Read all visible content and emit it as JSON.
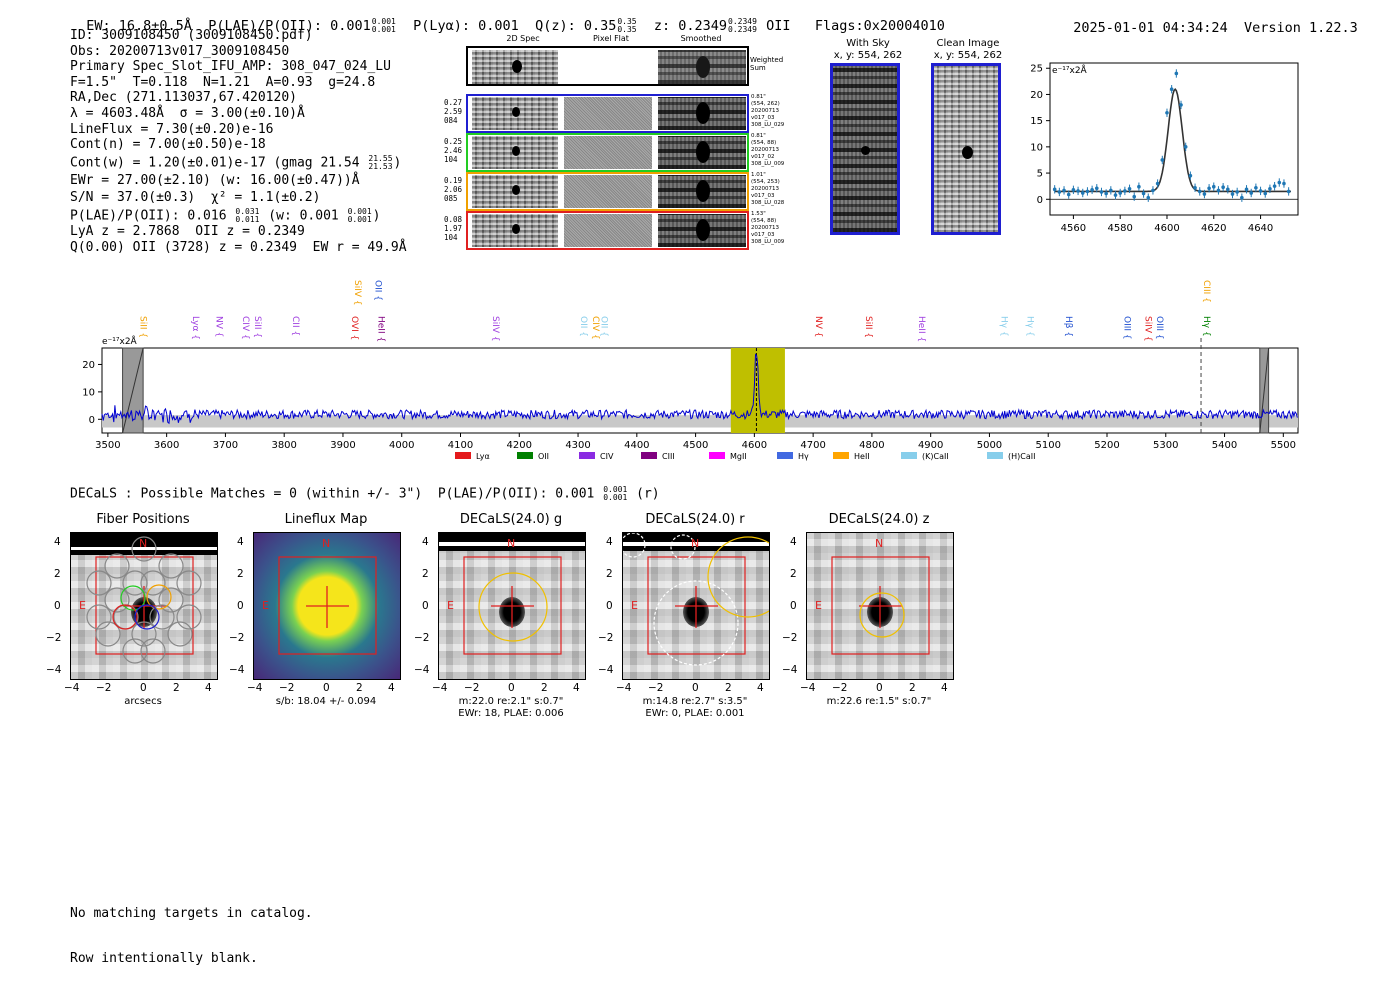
{
  "header": {
    "ew": "EW: 16.8±0.5Å",
    "plae_label": "P(LAE)/P(OII): 0.001",
    "plae_hi": "0.001",
    "plae_lo": "0.001",
    "plya": "P(Lyα): 0.001",
    "qz_label": "Q(z): 0.35",
    "qz_hi": "0.35",
    "qz_lo": "0.35",
    "z_label": "z: 0.2349",
    "z_hi": "0.2349",
    "z_lo": "0.2349",
    "z_line": "OII",
    "flags": "Flags:0x20004010",
    "timestamp": "2025-01-01 04:34:24",
    "version": "Version 1.22.3"
  },
  "info": {
    "id": "ID: 3009108450 (3009108450.pdf)",
    "obs": "Obs: 20200713v017_3009108450",
    "primary": "Primary Spec_Slot_IFU_AMP: 308_047_024_LU",
    "fit": "F=1.5\"  T=0.118  N=1.21  A=0.93  g=24.8",
    "radec": "RA,Dec (271.113037,67.420120)",
    "lambda": "λ = 4603.48Å  σ = 3.00(±0.10)Å",
    "lineflux": "LineFlux = 7.30(±0.20)e-16",
    "contn": "Cont(n) = 7.00(±0.50)e-18",
    "contw_a": "Cont(w) = 1.20(±0.01)e-17 (gmag 21.54",
    "contw_hi": "21.55",
    "contw_lo": "21.53",
    "contw_b": ")",
    "ewr": "EWr = 27.00(±2.10) (w: 16.00(±0.47))Å",
    "sn": "S/N = 37.0(±0.3)  χ² = 1.1(±0.2)",
    "plae_a": "P(LAE)/P(OII): 0.016",
    "plae_hi": "0.031",
    "plae_lo": "0.011",
    "plae_b": "(w: 0.001",
    "plae_w_hi": "0.001",
    "plae_w_lo": "0.001",
    "plae_c": ")",
    "lya": "LyA z = 2.7868  OII z = 0.2349",
    "q": "Q(0.00) OII (3728) z = 0.2349  EW r = 49.9Å"
  },
  "cutouts": {
    "col_headers": [
      "2D Spec",
      "Pixel Flat",
      "Smoothed"
    ],
    "weighted": "Weighted\nSum",
    "rows": [
      {
        "left": [
          "0.27",
          "2.59",
          "084"
        ],
        "right": [
          "0.81\"",
          "(554, 262)",
          "20200713",
          "v017_03",
          "308_LU_029"
        ],
        "color": "#1f1fd0"
      },
      {
        "left": [
          "0.25",
          "2.46",
          "104"
        ],
        "right": [
          "0.81\"",
          "(554, 88)",
          "20200713",
          "v017_02",
          "308_LU_009"
        ],
        "color": "#22cc22"
      },
      {
        "left": [
          "0.19",
          "2.06",
          "085"
        ],
        "right": [
          "1.01\"",
          "(554, 253)",
          "20200713",
          "v017_03",
          "308_LU_028"
        ],
        "color": "#f0a000"
      },
      {
        "left": [
          "0.08",
          "1.97",
          "104"
        ],
        "right": [
          "1.53\"",
          "(554, 88)",
          "20200713",
          "v017_03",
          "308_LU_009"
        ],
        "color": "#e02020"
      }
    ],
    "with_sky_title": "With Sky",
    "with_sky_xy": "x, y: 554, 262",
    "clean_title": "Clean Image",
    "clean_xy": "x, y: 554, 262"
  },
  "zoom_chart": {
    "unit_label": "e⁻¹⁷x2Å"
  },
  "spectrum": {
    "unit_label": "e⁻¹⁷x2Å",
    "line_labels": [
      {
        "text": "SiII",
        "x": 3550,
        "color": "#f0a000",
        "row": 0
      },
      {
        "text": "SiIV",
        "x": 3915,
        "color": "#f0a000",
        "row": -1
      },
      {
        "text": "OII",
        "x": 3950,
        "color": "#2050d0",
        "row": -1
      },
      {
        "text": "Lyα",
        "x": 3640,
        "color": "#a040e0",
        "row": 0
      },
      {
        "text": "NV",
        "x": 3680,
        "color": "#a040e0",
        "row": 0
      },
      {
        "text": "CIV",
        "x": 3725,
        "color": "#a040e0",
        "row": 0
      },
      {
        "text": "SiII",
        "x": 3745,
        "color": "#a040e0",
        "row": 0
      },
      {
        "text": "CII",
        "x": 3810,
        "color": "#a040e0",
        "row": 0
      },
      {
        "text": "OVI",
        "x": 3910,
        "color": "#e02020",
        "row": 0
      },
      {
        "text": "HeII",
        "x": 3955,
        "color": "#800080",
        "row": 0
      },
      {
        "text": "SiIV",
        "x": 4150,
        "color": "#a040e0",
        "row": 0
      },
      {
        "text": "OII",
        "x": 4300,
        "color": "#87ceeb",
        "row": 0
      },
      {
        "text": "CIV",
        "x": 4320,
        "color": "#f0a000",
        "row": 0
      },
      {
        "text": "OII",
        "x": 4335,
        "color": "#87ceeb",
        "row": 0
      },
      {
        "text": "NV",
        "x": 4700,
        "color": "#e02020",
        "row": 0
      },
      {
        "text": "SiII",
        "x": 4785,
        "color": "#e02020",
        "row": 0
      },
      {
        "text": "HeII",
        "x": 4875,
        "color": "#a040e0",
        "row": 0
      },
      {
        "text": "Hγ",
        "x": 5015,
        "color": "#87ceeb",
        "row": 0
      },
      {
        "text": "Hγ",
        "x": 5060,
        "color": "#87ceeb",
        "row": 0
      },
      {
        "text": "Hβ",
        "x": 5125,
        "color": "#2050d0",
        "row": 0
      },
      {
        "text": "OIII",
        "x": 5225,
        "color": "#2050d0",
        "row": 0
      },
      {
        "text": "SiIV",
        "x": 5260,
        "color": "#e02020",
        "row": 0
      },
      {
        "text": "OIII",
        "x": 5280,
        "color": "#2050d0",
        "row": 0
      },
      {
        "text": "CIII",
        "x": 5360,
        "color": "#f0a000",
        "row": -1
      },
      {
        "text": "Hγ",
        "x": 5360,
        "color": "#008000",
        "row": 0
      }
    ],
    "legend": [
      {
        "label": "Lyα",
        "color": "#e41a1c"
      },
      {
        "label": "OII",
        "color": "#008000"
      },
      {
        "label": "CIV",
        "color": "#8a2be2"
      },
      {
        "label": "CIII",
        "color": "#800080"
      },
      {
        "label": "MgII",
        "color": "#ff00ff"
      },
      {
        "label": "Hγ",
        "color": "#4169e1"
      },
      {
        "label": "HeII",
        "color": "#ffa500"
      },
      {
        "label": "(K)CaII",
        "color": "#87ceeb"
      },
      {
        "label": "(H)CaII",
        "color": "#87ceeb"
      }
    ]
  },
  "decals": {
    "heading": "DECaLS : Possible Matches = 0 (within +/- 3\")  P(LAE)/P(OII): 0.001",
    "heading_hi": "0.001",
    "heading_lo": "0.001",
    "heading_tail": "(r)",
    "panels": [
      {
        "title": "Fiber Positions",
        "cap1": "arcsecs",
        "cap2": ""
      },
      {
        "title": "Lineflux Map",
        "cap1": "s/b: 18.04 +/- 0.094",
        "cap2": ""
      },
      {
        "title": "DECaLS(24.0) g",
        "cap1": "m:22.0  re:2.1\"  s:0.7\"",
        "cap2": "EWr: 18, PLAE: 0.006"
      },
      {
        "title": "DECaLS(24.0) r",
        "cap1": "m:14.8  re:2.7\"  s:3.5\"",
        "cap2": "EWr: 0, PLAE: 0.001"
      },
      {
        "title": "DECaLS(24.0) z",
        "cap1": "m:22.6  re:1.5\"  s:0.7\"",
        "cap2": ""
      }
    ],
    "north": "N",
    "east": "E"
  },
  "footer": {
    "line1": "No matching targets in catalog.",
    "line2": "Row intentionally blank."
  },
  "chart_data": [
    {
      "type": "scatter",
      "title": "",
      "xlabel": "",
      "ylabel": "e⁻¹⁷x2Å",
      "xlim": [
        4550,
        4656
      ],
      "ylim": [
        -3,
        26
      ],
      "xticks": [
        4560,
        4580,
        4600,
        4620,
        4640
      ],
      "yticks": [
        0,
        5,
        10,
        15,
        20,
        25
      ],
      "series": [
        {
          "name": "data",
          "x": [
            4552,
            4554,
            4556,
            4558,
            4560,
            4562,
            4564,
            4566,
            4568,
            4570,
            4572,
            4574,
            4576,
            4578,
            4580,
            4582,
            4584,
            4586,
            4588,
            4590,
            4592,
            4594,
            4596,
            4598,
            4600,
            4602,
            4604,
            4606,
            4608,
            4610,
            4612,
            4614,
            4616,
            4618,
            4620,
            4622,
            4624,
            4626,
            4628,
            4630,
            4632,
            4634,
            4636,
            4638,
            4640,
            4642,
            4644,
            4646,
            4648,
            4650,
            4652
          ],
          "y": [
            1.9,
            1.4,
            1.7,
            0.9,
            1.8,
            1.6,
            1.2,
            1.5,
            1.8,
            2.1,
            1.4,
            1.1,
            1.7,
            0.8,
            1.2,
            1.6,
            2.0,
            0.5,
            2.4,
            1.1,
            0.3,
            1.7,
            3.0,
            7.5,
            16.5,
            21.0,
            24.0,
            18.0,
            10.0,
            4.5,
            2.2,
            1.5,
            1.0,
            2.1,
            2.4,
            1.7,
            2.3,
            1.9,
            1.0,
            1.4,
            0.3,
            1.9,
            1.2,
            2.2,
            1.6,
            1.1,
            2.0,
            2.5,
            3.2,
            3.0,
            1.5
          ]
        },
        {
          "name": "fit",
          "type": "line",
          "amplitude": 19.5,
          "center": 4603.5,
          "sigma": 3.0,
          "baseline": 1.5
        }
      ]
    },
    {
      "type": "line",
      "title": "",
      "xlabel": "",
      "ylabel": "e⁻¹⁷x2Å",
      "xlim": [
        3490,
        5525
      ],
      "ylim": [
        -5,
        26
      ],
      "xticks": [
        3500,
        3600,
        3700,
        3800,
        3900,
        4000,
        4100,
        4200,
        4300,
        4400,
        4500,
        4600,
        4700,
        4800,
        4900,
        5000,
        5100,
        5200,
        5300,
        5400,
        5500
      ],
      "yticks": [
        0,
        10,
        20
      ],
      "highlight_band": [
        4560,
        4652
      ],
      "emission_line": 4603.5,
      "marker_line": 5360,
      "masked_regions": [
        [
          3525,
          3560
        ],
        [
          5460,
          5475
        ]
      ],
      "series": [
        {
          "name": "flux",
          "continuum": 1.8,
          "noise": 1.6,
          "peak_x": 4603.5,
          "peak_y": 23
        }
      ]
    }
  ]
}
